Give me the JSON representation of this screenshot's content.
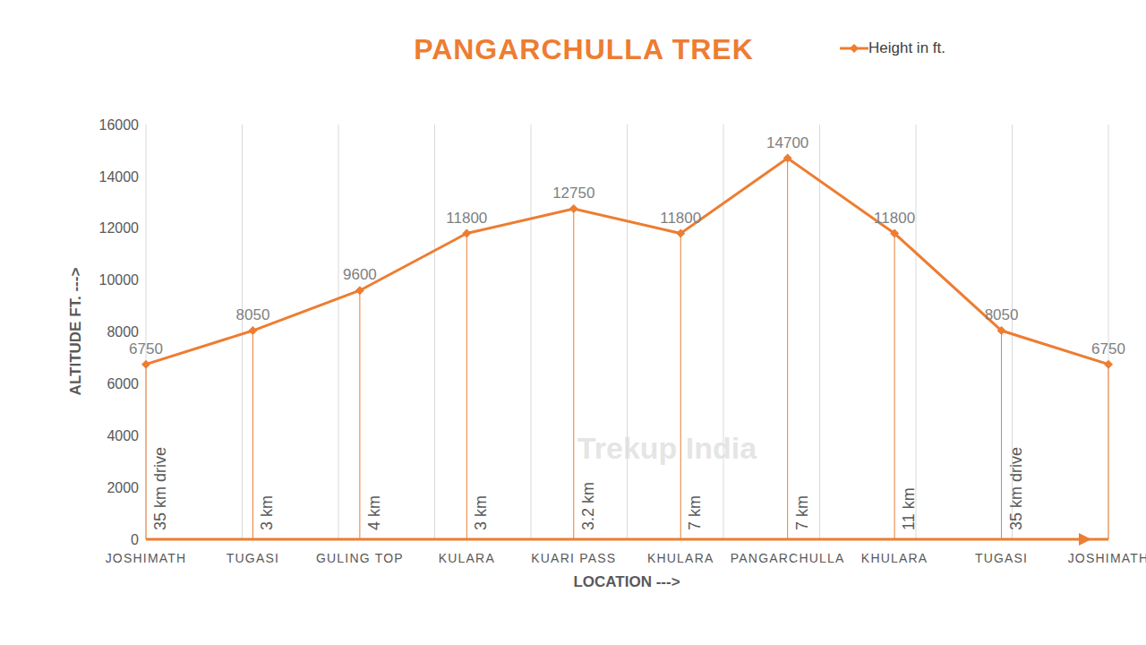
{
  "chart_data": {
    "type": "line",
    "title": "PANGARCHULLA TREK",
    "x_label": "LOCATION --->",
    "y_label": "ALTITUDE FT. --->",
    "categories": [
      "JOSHIMATH",
      "TUGASI",
      "GULING TOP",
      "KULARA",
      "KUARI PASS",
      "KHULARA",
      "PANGARCHULLA",
      "KHULARA",
      "TUGASI",
      "JOSHIMATH"
    ],
    "series": [
      {
        "name": "Height in ft.",
        "color": "#ed7d31",
        "marker": "diamond",
        "values": [
          6750,
          8050,
          9600,
          11800,
          12750,
          11800,
          14700,
          11800,
          8050,
          6750
        ]
      }
    ],
    "segment_labels": [
      "35 km drive",
      "3 km",
      "4 km",
      "3 km",
      "3.2 km",
      "7 km",
      "7 km",
      "11 km",
      "35 km drive",
      null
    ],
    "ylim": [
      0,
      16000
    ],
    "yticks": [
      0,
      2000,
      4000,
      6000,
      8000,
      10000,
      12000,
      14000,
      16000
    ],
    "grid": true,
    "legend": "top right",
    "data_labels": true,
    "watermark": "Trekup India"
  }
}
